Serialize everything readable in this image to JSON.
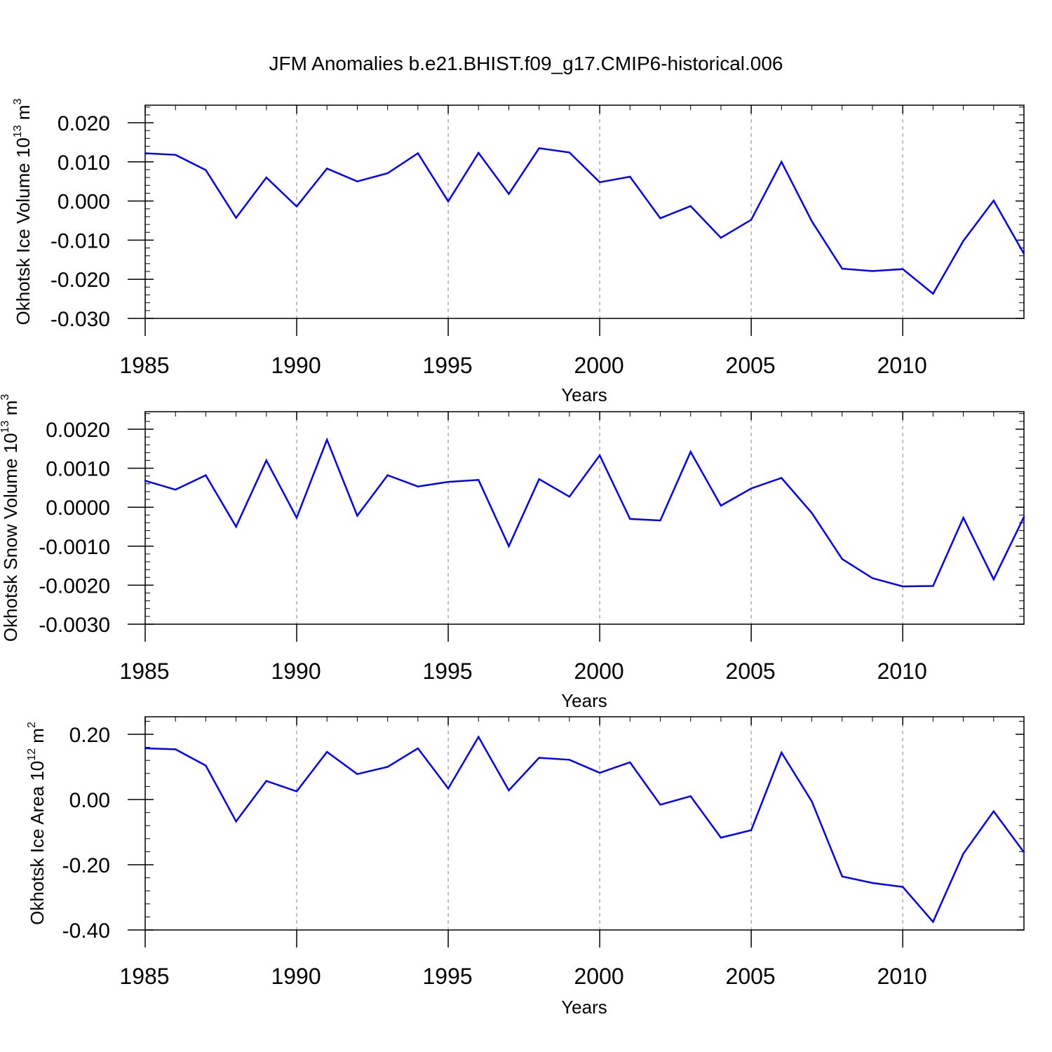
{
  "figure_title": "JFM Anomalies b.e21.BHIST.f09_g17.CMIP6-historical.006",
  "colors": {
    "line": "#0000ff",
    "axis": "#000000",
    "grid": "#999999"
  },
  "chart_data": [
    {
      "type": "line",
      "ylabel_main": "Okhotsk Ice Volume 10",
      "ylabel_exp": "13",
      "ylabel_unit": " m",
      "ylabel_unit_exp": "3",
      "xlabel": "Years",
      "xlim": [
        1985,
        2014
      ],
      "ylim": [
        -0.03,
        0.025
      ],
      "yticks": [
        0.02,
        0.01,
        0.0,
        -0.01,
        -0.02,
        -0.03
      ],
      "ytick_labels": [
        "0.020",
        "0.010",
        "0.000",
        "-0.010",
        "-0.020",
        "-0.030"
      ],
      "xticks": [
        1985,
        1990,
        1995,
        2000,
        2005,
        2010
      ],
      "xtick_labels": [
        "1985",
        "1990",
        "1995",
        "2000",
        "2005",
        "2010"
      ],
      "grid_x": [
        1990,
        1995,
        2000,
        2005,
        2010
      ],
      "x": [
        1985,
        1986,
        1987,
        1988,
        1989,
        1990,
        1991,
        1992,
        1993,
        1994,
        1995,
        1996,
        1997,
        1998,
        1999,
        2000,
        2001,
        2002,
        2003,
        2004,
        2005,
        2006,
        2007,
        2008,
        2009,
        2010,
        2011,
        2012,
        2013,
        2014
      ],
      "values": [
        0.0122,
        0.0118,
        0.0079,
        -0.0043,
        0.006,
        -0.0014,
        0.0083,
        0.005,
        0.0071,
        0.0122,
        -0.0001,
        0.0123,
        0.0018,
        0.0135,
        0.0124,
        0.0048,
        0.0062,
        -0.0044,
        -0.0013,
        -0.0094,
        -0.0048,
        0.01,
        -0.0052,
        -0.0173,
        -0.0179,
        -0.0174,
        -0.0237,
        -0.0102,
        0.0001,
        -0.0135
      ]
    },
    {
      "type": "line",
      "ylabel_main": "Okhotsk Snow Volume 10",
      "ylabel_exp": "13",
      "ylabel_unit": " m",
      "ylabel_unit_exp": "3",
      "xlabel": "Years",
      "xlim": [
        1985,
        2014
      ],
      "ylim": [
        -0.003,
        0.0025
      ],
      "yticks": [
        0.002,
        0.001,
        0.0,
        -0.001,
        -0.002,
        -0.003
      ],
      "ytick_labels": [
        "0.0020",
        "0.0010",
        "0.0000",
        "-0.0010",
        "-0.0020",
        "-0.0030"
      ],
      "xticks": [
        1985,
        1990,
        1995,
        2000,
        2005,
        2010
      ],
      "xtick_labels": [
        "1985",
        "1990",
        "1995",
        "2000",
        "2005",
        "2010"
      ],
      "grid_x": [
        1990,
        1995,
        2000,
        2005,
        2010
      ],
      "x": [
        1985,
        1986,
        1987,
        1988,
        1989,
        1990,
        1991,
        1992,
        1993,
        1994,
        1995,
        1996,
        1997,
        1998,
        1999,
        2000,
        2001,
        2002,
        2003,
        2004,
        2005,
        2006,
        2007,
        2008,
        2009,
        2010,
        2011,
        2012,
        2013,
        2014
      ],
      "values": [
        0.00068,
        0.00045,
        0.00082,
        -0.0005,
        0.0012,
        -0.00027,
        0.00173,
        -0.00022,
        0.00082,
        0.00053,
        0.00065,
        0.0007,
        -0.001,
        0.00072,
        0.00027,
        0.00133,
        -0.0003,
        -0.00034,
        0.00142,
        4e-05,
        0.00048,
        0.00075,
        -0.00015,
        -0.00133,
        -0.00182,
        -0.00203,
        -0.00202,
        -0.00027,
        -0.00185,
        -0.00025
      ]
    },
    {
      "type": "line",
      "ylabel_main": "Okhotsk Ice Area 10",
      "ylabel_exp": "12",
      "ylabel_unit": " m",
      "ylabel_unit_exp": "2",
      "xlabel": "Years",
      "xlim": [
        1985,
        2014
      ],
      "ylim": [
        -0.4,
        0.25
      ],
      "yticks": [
        0.2,
        0.0,
        -0.2,
        -0.4
      ],
      "ytick_labels": [
        "0.20",
        "0.00",
        "-0.20",
        "-0.40"
      ],
      "xticks": [
        1985,
        1990,
        1995,
        2000,
        2005,
        2010
      ],
      "xtick_labels": [
        "1985",
        "1990",
        "1995",
        "2000",
        "2005",
        "2010"
      ],
      "grid_x": [
        1990,
        1995,
        2000,
        2005,
        2010
      ],
      "x": [
        1985,
        1986,
        1987,
        1988,
        1989,
        1990,
        1991,
        1992,
        1993,
        1994,
        1995,
        1996,
        1997,
        1998,
        1999,
        2000,
        2001,
        2002,
        2003,
        2004,
        2005,
        2006,
        2007,
        2008,
        2009,
        2010,
        2011,
        2012,
        2013,
        2014
      ],
      "values": [
        0.157,
        0.154,
        0.104,
        -0.067,
        0.057,
        0.025,
        0.146,
        0.078,
        0.1,
        0.157,
        0.034,
        0.192,
        0.028,
        0.128,
        0.122,
        0.082,
        0.114,
        -0.016,
        0.01,
        -0.117,
        -0.094,
        0.144,
        -0.006,
        -0.236,
        -0.256,
        -0.268,
        -0.375,
        -0.166,
        -0.036,
        -0.162
      ]
    }
  ]
}
